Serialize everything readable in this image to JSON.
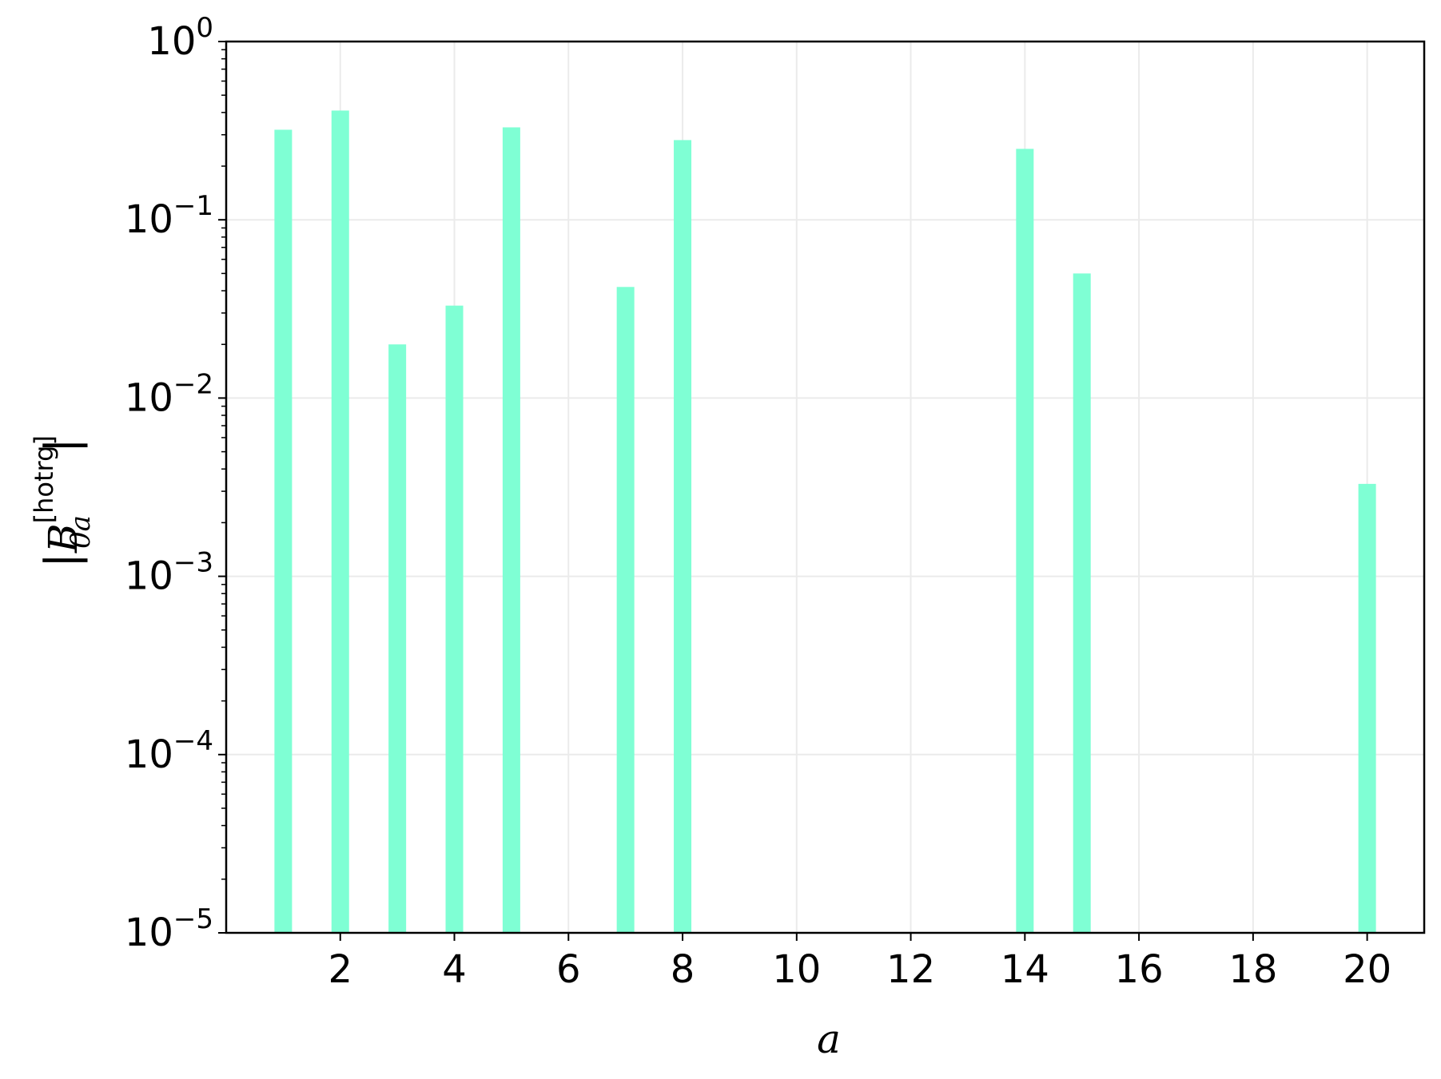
{
  "chart_data": {
    "type": "bar",
    "scale_y": "log",
    "x": [
      1,
      2,
      3,
      4,
      5,
      7,
      8,
      14,
      15,
      20
    ],
    "values": [
      0.32,
      0.41,
      0.02,
      0.033,
      0.33,
      0.042,
      0.28,
      0.25,
      0.05,
      0.0033
    ],
    "bar_color": "#7fffd4",
    "xlim": [
      0,
      21
    ],
    "ylim": [
      1e-05,
      1
    ],
    "xticks": [
      "2",
      "4",
      "6",
      "8",
      "10",
      "12",
      "14",
      "16",
      "18",
      "20"
    ],
    "yticks": [
      {
        "base": "10",
        "exp": "0"
      },
      {
        "base": "10",
        "exp": "−1"
      },
      {
        "base": "10",
        "exp": "−2"
      },
      {
        "base": "10",
        "exp": "−3"
      },
      {
        "base": "10",
        "exp": "−4"
      },
      {
        "base": "10",
        "exp": "−5"
      }
    ],
    "xlabel": "a",
    "ylabel": {
      "symbol": "B",
      "subscript": "0a",
      "superscript": "[hotrg]"
    },
    "grid": true,
    "grid_color": "#ebebeb"
  }
}
